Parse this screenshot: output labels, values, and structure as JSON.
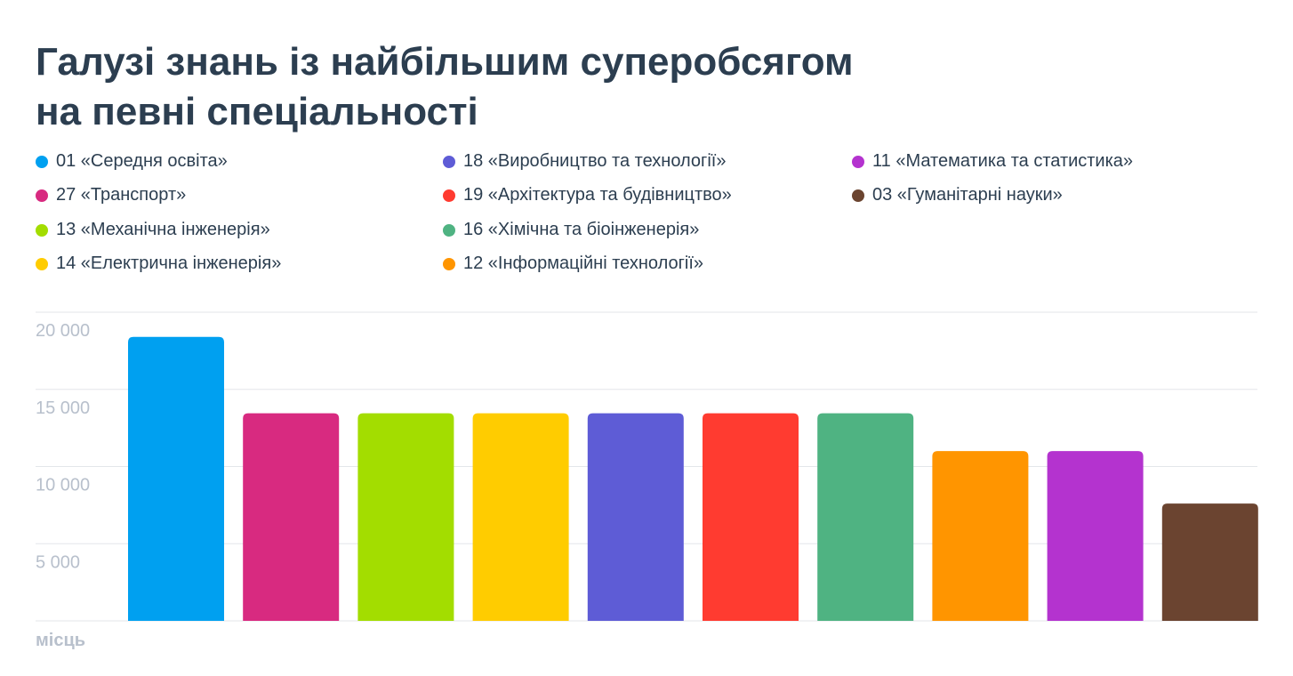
{
  "header": {
    "title_line1": "Галузі знань із найбільшим суперобсягом",
    "title_line2": "на певні спеціальності"
  },
  "chart_data": {
    "type": "bar",
    "title": "Галузі знань із найбільшим суперобсягом на певні спеціальності",
    "ylabel": "місць",
    "ylim": [
      0,
      20000
    ],
    "y_ticks": [
      "5 000",
      "10 000",
      "15 000",
      "20 000"
    ],
    "grid": true,
    "legend_position": "top",
    "categories": [
      "01 «Середня освіта»",
      "27 «Транспорт»",
      "13 «Механічна інженерія»",
      "14 «Електрична інженерія»",
      "18 «Виробництво та технології»",
      "19 «Архітектура та будівництво»",
      "16 «Хімічна та біоінженерія»",
      "12 «Інформаційні технології»",
      "11 «Математика та статистика»",
      "03 «Гуманітарні науки»"
    ],
    "values": [
      18400,
      13450,
      13450,
      13450,
      13450,
      13450,
      13450,
      11000,
      11000,
      7600
    ],
    "colors": [
      "#00a0f0",
      "#d82a80",
      "#a3dd00",
      "#ffcc00",
      "#5e5cd6",
      "#ff3b30",
      "#4fb382",
      "#ff9500",
      "#b433cf",
      "#6b4430"
    ]
  }
}
